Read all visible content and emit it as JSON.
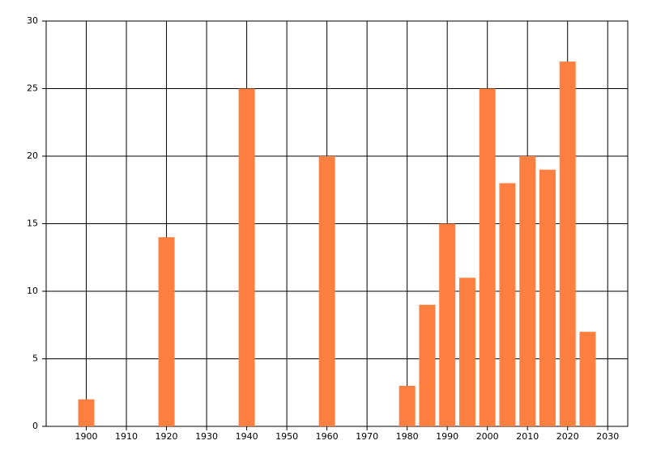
{
  "chart_data": {
    "type": "bar",
    "x": [
      1900,
      1920,
      1940,
      1960,
      1980,
      1985,
      1990,
      1995,
      2000,
      2005,
      2010,
      2015,
      2020,
      2025
    ],
    "values": [
      2,
      14,
      25,
      20,
      3,
      9,
      15,
      11,
      25,
      18,
      20,
      19,
      27,
      7
    ],
    "color": "#ff7f41",
    "xlim": [
      1890,
      2035
    ],
    "xticks": [
      1900,
      1910,
      1920,
      1930,
      1940,
      1950,
      1960,
      1970,
      1980,
      1990,
      2000,
      2010,
      2020,
      2030
    ],
    "ylim": [
      0,
      30
    ],
    "yticks": [
      0,
      5,
      10,
      15,
      20,
      25,
      30
    ],
    "grid": true
  }
}
